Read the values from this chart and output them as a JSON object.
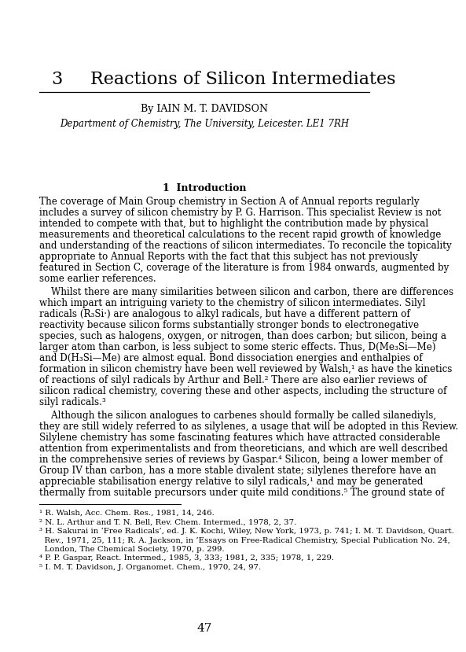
{
  "chapter_num": "3",
  "chapter_title": "Reactions of Silicon Intermediates",
  "author_line": "By IAIN M. T. DAVIDSON",
  "affiliation": "Department of Chemistry, The University, Leicester. LE1 7RH",
  "section_title": "1  Introduction",
  "para1_lines": [
    "The coverage of Main Group chemistry in Section A of Annual reports regularly",
    "includes a survey of silicon chemistry by P. G. Harrison. This specialist Review is not",
    "intended to compete with that, but to highlight the contribution made by physical",
    "measurements and theoretical calculations to the recent rapid growth of knowledge",
    "and understanding of the reactions of silicon intermediates. To reconcile the topicality",
    "appropriate to Annual Reports with the fact that this subject has not previously",
    "featured in Section C, coverage of the literature is from 1984 onwards, augmented by",
    "some earlier references."
  ],
  "para2_lines": [
    "    Whilst there are many similarities between silicon and carbon, there are differences",
    "which impart an intriguing variety to the chemistry of silicon intermediates. Silyl",
    "radicals (R₃Si·) are analogous to alkyl radicals, but have a different pattern of",
    "reactivity because silicon forms substantially stronger bonds to electronegative",
    "species, such as halogens, oxygen, or nitrogen, than does carbon; but silicon, being a",
    "larger atom than carbon, is less subject to some steric effects. Thus, D(Me₃Si—Me)",
    "and D(H₃Si—Me) are almost equal. Bond dissociation energies and enthalpies of",
    "formation in silicon chemistry have been well reviewed by Walsh,¹ as have the kinetics",
    "of reactions of silyl radicals by Arthur and Bell.² There are also earlier reviews of",
    "silicon radical chemistry, covering these and other aspects, including the structure of",
    "silyl radicals.³"
  ],
  "para3_lines": [
    "    Although the silicon analogues to carbenes should formally be called silanediyls,",
    "they are still widely referred to as silylenes, a usage that will be adopted in this Review.",
    "Silylene chemistry has some fascinating features which have attracted considerable",
    "attention from experimentalists and from theoreticians, and which are well described",
    "in the comprehensive series of reviews by Gaspar.⁴ Silicon, being a lower member of",
    "Group IV than carbon, has a more stable divalent state; silylenes therefore have an",
    "appreciable stabilisation energy relative to silyl radicals,¹ and may be generated",
    "thermally from suitable precursors under quite mild conditions.⁵ The ground state of"
  ],
  "fn1": "¹ R. Walsh, Acc. Chem. Res., 1981, 14, 246.",
  "fn2": "² N. L. Arthur and T. N. Bell, Rev. Chem. Intermed., 1978, 2, 37.",
  "fn3a": "³ H. Sakurai in ‘Free Radicals’, ed. J. K. Kochi, Wiley, New York, 1973, p. 741; I. M. T. Davidson, Quart.",
  "fn3b": "  Rev., 1971, 25, 111; R. A. Jackson, in ‘Essays on Free-Radical Chemistry, Special Publication No. 24,",
  "fn3c": "  London, The Chemical Society, 1970, p. 299.",
  "fn4": "⁴ P. P. Gaspar, React. Intermed., 1985, 3, 333; 1981, 2, 335; 1978, 1, 229.",
  "fn5": "⁵ I. M. T. Davidson, J. Organomet. Chem., 1970, 24, 97.",
  "page_number": "47"
}
